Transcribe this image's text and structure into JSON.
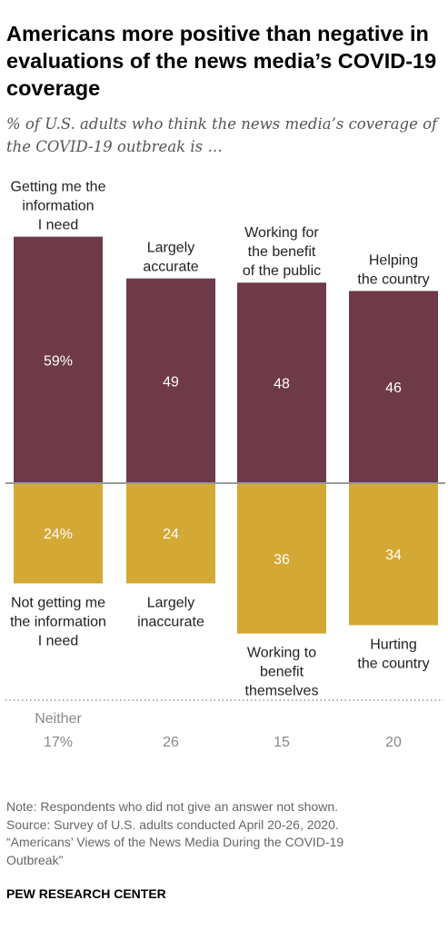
{
  "title": "Americans more positive than negative in evaluations of the news media’s COVID-19 coverage",
  "subtitle": "% of U.S. adults who think the news media’s coverage of the COVID-19 outbreak is …",
  "chart_data": {
    "type": "bar",
    "layout": "diverging",
    "categories": [
      "Information",
      "Accuracy",
      "Benefit",
      "Country"
    ],
    "series": [
      {
        "name": "Positive",
        "color": "#6e3a47",
        "values": [
          59,
          49,
          48,
          46
        ],
        "labels": [
          "59%",
          "49",
          "48",
          "46"
        ],
        "category_labels": [
          [
            "Getting me the",
            "information",
            "I need"
          ],
          [
            "Largely",
            "accurate"
          ],
          [
            "Working for",
            "the benefit",
            "of the public"
          ],
          [
            "Helping",
            "the country"
          ]
        ]
      },
      {
        "name": "Negative",
        "color": "#d4a835",
        "values": [
          24,
          24,
          36,
          34
        ],
        "labels": [
          "24%",
          "24",
          "36",
          "34"
        ],
        "category_labels": [
          [
            "Not getting me",
            "the information",
            "I need"
          ],
          [
            "Largely",
            "inaccurate"
          ],
          [
            "Working to",
            "benefit",
            "themselves"
          ],
          [
            "Hurting",
            "the country"
          ]
        ]
      }
    ],
    "neither": {
      "label": "Neither",
      "values": [
        17,
        26,
        15,
        20
      ],
      "labels": [
        "17%",
        "26",
        "15",
        "20"
      ]
    },
    "baseline_color": "#999999"
  },
  "notes": [
    "Note: Respondents who did not give an answer not shown.",
    "Source: Survey of U.S. adults conducted April 20-26, 2020.",
    "“Americans’ Views of the News Media During the COVID-19",
    "Outbreak”"
  ],
  "source_org": "PEW RESEARCH CENTER"
}
